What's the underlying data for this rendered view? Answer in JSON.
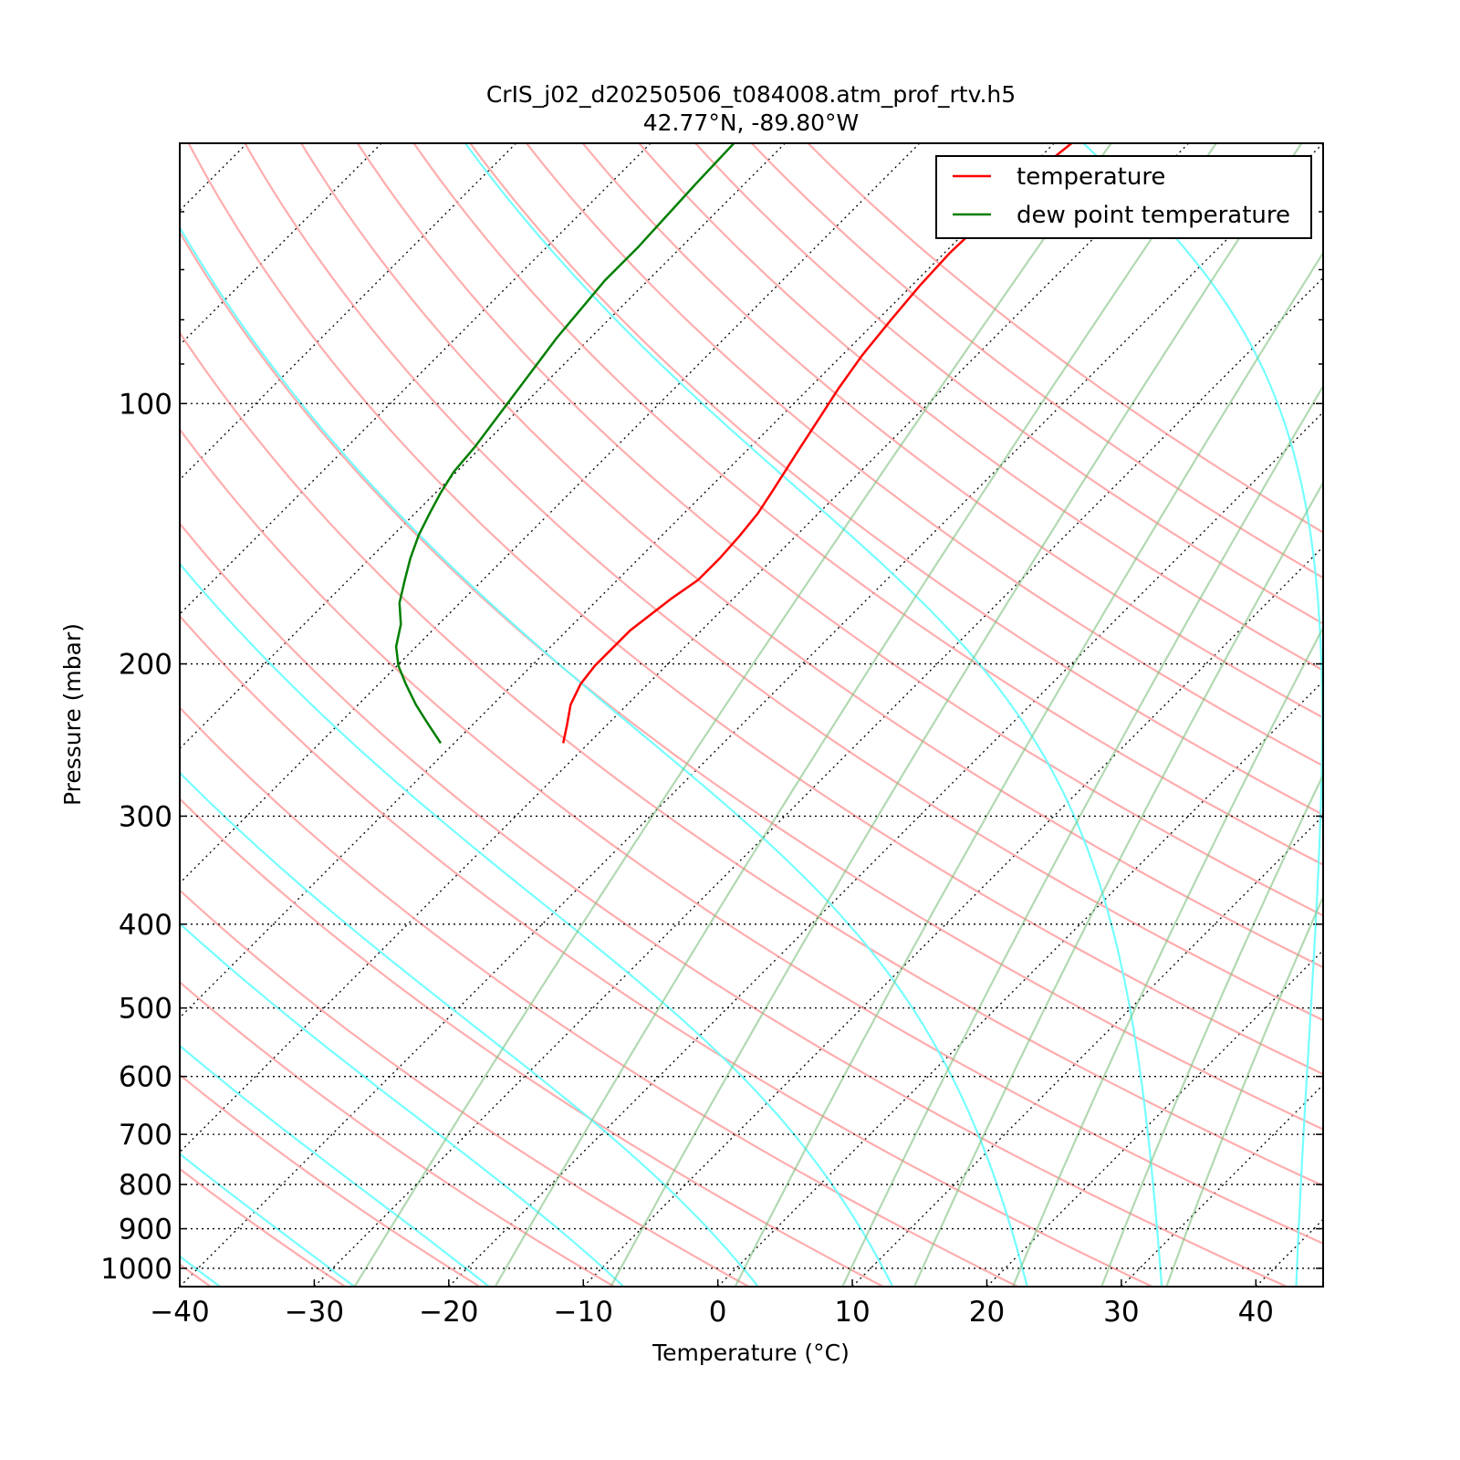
{
  "chart_data": {
    "type": "skewt",
    "title": "CrIS_j02_d20250506_t084008.atm_prof_rtv.h5",
    "subtitle": "42.77°N, -89.80°W",
    "xlabel": "Temperature (°C)",
    "ylabel": "Pressure (mbar)",
    "xlim": [
      -40,
      45
    ],
    "ylim": [
      1050,
      50
    ],
    "ylog": true,
    "skew_angle": 45,
    "xticks": [
      {
        "value": -40,
        "label": "−40"
      },
      {
        "value": -30,
        "label": "−30"
      },
      {
        "value": -20,
        "label": "−20"
      },
      {
        "value": -10,
        "label": "−10"
      },
      0,
      10,
      20,
      30,
      40
    ],
    "yticks": [
      100,
      200,
      300,
      400,
      500,
      600,
      700,
      800,
      900,
      1000
    ],
    "yminorticks": [
      60,
      70,
      80,
      90
    ],
    "grid": true,
    "legend": "upper right",
    "series": [
      {
        "name": "temperature",
        "color": "#ff0000",
        "y": [
          247,
          235,
          223,
          211,
          201,
          183,
          168,
          160,
          151,
          142,
          134,
          126,
          113,
          102,
          96,
          88,
          80,
          73,
          67,
          63,
          57,
          50
        ],
        "x": [
          -51.9,
          -53.0,
          -54.2,
          -55.0,
          -55.3,
          -55.3,
          -54.6,
          -54.0,
          -54.0,
          -54.2,
          -54.5,
          -55.1,
          -56.2,
          -57.2,
          -57.8,
          -58.5,
          -59.0,
          -59.4,
          -59.6,
          -59.5,
          -59.6,
          -58.7
        ]
      },
      {
        "name": "dew point temperature",
        "color": "#007f00",
        "y": [
          247,
          233,
          223,
          211,
          201,
          191,
          180,
          170,
          160,
          151,
          142,
          134,
          127,
          120,
          112,
          97,
          84,
          72,
          66,
          56,
          50
        ],
        "x": [
          -61.0,
          -63.7,
          -65.7,
          -68.0,
          -69.9,
          -71.5,
          -72.8,
          -74.5,
          -75.8,
          -77.0,
          -78.1,
          -78.9,
          -79.6,
          -80.2,
          -80.5,
          -81.5,
          -82.5,
          -83.2,
          -83.2,
          -83.6,
          -83.8
        ]
      }
    ]
  }
}
